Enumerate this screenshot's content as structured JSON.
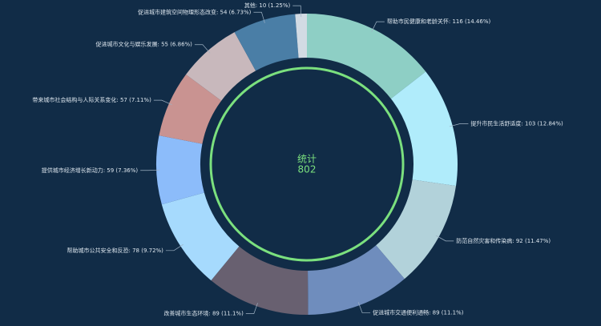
{
  "chart_data": {
    "type": "pie",
    "center_label": "统计",
    "total": 802,
    "values": [
      116,
      103,
      92,
      89,
      89,
      78,
      59,
      57,
      55,
      54,
      10
    ],
    "value_labels": [
      "帮助市民健康和老龄关怀: 116 (14.46%)",
      "提升市民生活舒适度: 103 (12.84%)",
      "防范自然灾害和传染病: 92 (11.47%)",
      "促进城市交通便利通畅: 89 (11.1%)",
      "改善城市生态环境: 89 (11.1%)",
      "帮助城市公共安全和反恐: 78 (9.72%)",
      "提供城市经济增长新动力: 59 (7.36%)",
      "带来城市社会结构与人际关系变化: 57 (7.11%)",
      "促进城市文化与娱乐发展: 55 (6.86%)",
      "促进城市建筑空间物理形态改变: 54 (6.73%)",
      "其他: 10 (1.25%)"
    ],
    "colors": [
      "#8ecfc5",
      "#b0ecfb",
      "#b2d2da",
      "#6f8dbd",
      "#686070",
      "#a6dafd",
      "#8cbcfa",
      "#c99391",
      "#c8b8bc",
      "#4a7ea6",
      "#d2dbe4"
    ]
  }
}
